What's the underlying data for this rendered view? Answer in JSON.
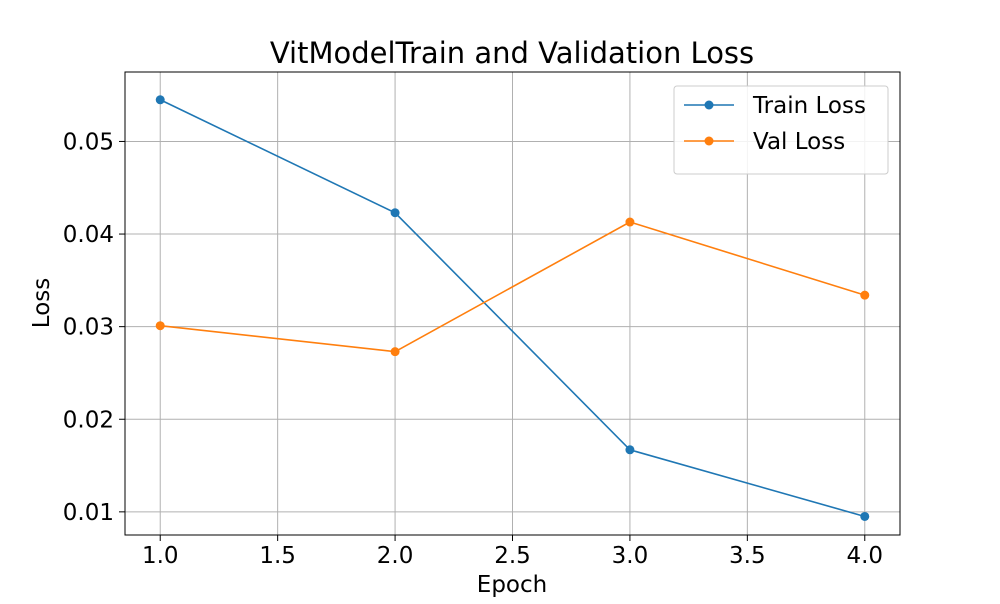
{
  "chart_data": {
    "type": "line",
    "title": "VitModelTrain and Validation Loss",
    "xlabel": "Epoch",
    "ylabel": "Loss",
    "x": [
      1.0,
      2.0,
      3.0,
      4.0
    ],
    "xlim": [
      0.85,
      4.15
    ],
    "ylim": [
      0.0075,
      0.0575
    ],
    "xticks": [
      "1.0",
      "1.5",
      "2.0",
      "2.5",
      "3.0",
      "3.5",
      "4.0"
    ],
    "xtick_values": [
      1.0,
      1.5,
      2.0,
      2.5,
      3.0,
      3.5,
      4.0
    ],
    "yticks": [
      "0.01",
      "0.02",
      "0.03",
      "0.04",
      "0.05"
    ],
    "ytick_values": [
      0.01,
      0.02,
      0.03,
      0.04,
      0.05
    ],
    "grid": true,
    "legend_position": "top-right",
    "series": [
      {
        "name": "Train Loss",
        "color": "#1f77b4",
        "marker": "circle",
        "values": [
          0.0545,
          0.0423,
          0.0167,
          0.0095
        ]
      },
      {
        "name": "Val Loss",
        "color": "#ff7f0e",
        "marker": "circle",
        "values": [
          0.0301,
          0.0273,
          0.0413,
          0.0334
        ]
      }
    ]
  }
}
